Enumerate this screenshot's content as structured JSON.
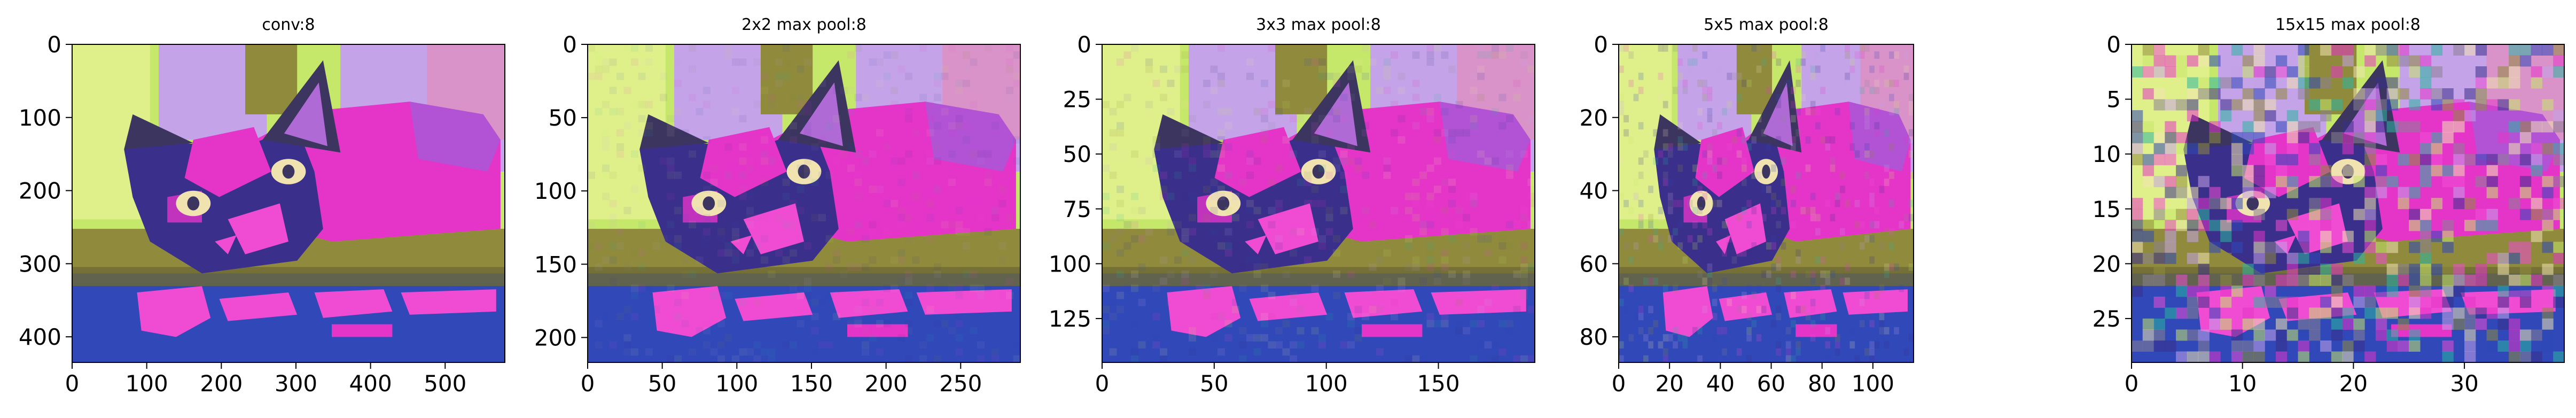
{
  "chart_data": [
    {
      "type": "heatmap",
      "title": "conv:8",
      "xlabel": "",
      "ylabel": "",
      "x_ticks": [
        0,
        100,
        200,
        300,
        400,
        500
      ],
      "y_ticks": [
        0,
        100,
        200,
        300,
        400
      ],
      "xlim": [
        0,
        580
      ],
      "ylim": [
        435,
        0
      ],
      "grid_resolution": [
        580,
        435
      ]
    },
    {
      "type": "heatmap",
      "title": "2x2 max pool:8",
      "xlabel": "",
      "ylabel": "",
      "x_ticks": [
        0,
        50,
        100,
        150,
        200,
        250
      ],
      "y_ticks": [
        0,
        50,
        100,
        150,
        200
      ],
      "xlim": [
        0,
        290
      ],
      "ylim": [
        217,
        0
      ],
      "grid_resolution": [
        290,
        217
      ]
    },
    {
      "type": "heatmap",
      "title": "3x3 max pool:8",
      "xlabel": "",
      "ylabel": "",
      "x_ticks": [
        0,
        50,
        100,
        150
      ],
      "y_ticks": [
        0,
        25,
        50,
        75,
        100,
        125
      ],
      "xlim": [
        0,
        193
      ],
      "ylim": [
        145,
        0
      ],
      "grid_resolution": [
        193,
        145
      ]
    },
    {
      "type": "heatmap",
      "title": "5x5 max pool:8",
      "xlabel": "",
      "ylabel": "",
      "x_ticks": [
        0,
        20,
        40,
        60,
        80,
        100
      ],
      "y_ticks": [
        0,
        20,
        40,
        60,
        80
      ],
      "xlim": [
        0,
        116
      ],
      "ylim": [
        87,
        0
      ],
      "grid_resolution": [
        116,
        87
      ]
    },
    {
      "type": "heatmap",
      "title": "15x15 max pool:8",
      "xlabel": "",
      "ylabel": "",
      "x_ticks": [
        0,
        10,
        20,
        30
      ],
      "y_ticks": [
        0,
        5,
        10,
        15,
        20,
        25
      ],
      "xlim": [
        0,
        39
      ],
      "ylim": [
        29,
        0
      ],
      "grid_resolution": [
        39,
        29
      ]
    }
  ]
}
